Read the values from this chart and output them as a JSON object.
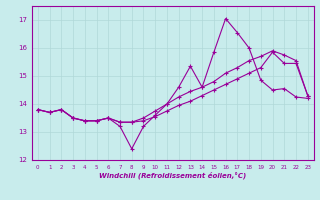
{
  "xlabel": "Windchill (Refroidissement éolien,°C)",
  "bg_color": "#c8ecec",
  "grid_color": "#b0d8d8",
  "line_color": "#990099",
  "ylim": [
    12,
    17.5
  ],
  "xlim": [
    -0.5,
    23.5
  ],
  "yticks": [
    12,
    13,
    14,
    15,
    16,
    17
  ],
  "xticks": [
    0,
    1,
    2,
    3,
    4,
    5,
    6,
    7,
    8,
    9,
    10,
    11,
    12,
    13,
    14,
    15,
    16,
    17,
    18,
    19,
    20,
    21,
    22,
    23
  ],
  "line1_x": [
    0,
    1,
    2,
    3,
    4,
    5,
    6,
    7,
    8,
    9,
    10,
    11,
    12,
    13,
    14,
    15,
    16,
    17,
    18,
    19,
    20,
    21,
    22,
    23
  ],
  "line1_y": [
    13.8,
    13.7,
    13.8,
    13.5,
    13.4,
    13.4,
    13.5,
    13.2,
    12.4,
    13.2,
    13.6,
    14.0,
    14.6,
    15.35,
    14.6,
    15.85,
    17.05,
    16.55,
    16.0,
    14.85,
    14.5,
    14.55,
    14.25,
    14.2
  ],
  "line2_x": [
    0,
    1,
    2,
    3,
    4,
    5,
    6,
    7,
    8,
    9,
    10,
    11,
    12,
    13,
    14,
    15,
    16,
    17,
    18,
    19,
    20,
    21,
    22,
    23
  ],
  "line2_y": [
    13.8,
    13.7,
    13.8,
    13.5,
    13.4,
    13.4,
    13.5,
    13.35,
    13.35,
    13.5,
    13.75,
    14.0,
    14.25,
    14.45,
    14.6,
    14.8,
    15.1,
    15.3,
    15.55,
    15.7,
    15.9,
    15.75,
    15.55,
    14.3
  ],
  "line3_x": [
    0,
    1,
    2,
    3,
    4,
    5,
    6,
    7,
    8,
    9,
    10,
    11,
    12,
    13,
    14,
    15,
    16,
    17,
    18,
    19,
    20,
    21,
    22,
    23
  ],
  "line3_y": [
    13.8,
    13.7,
    13.8,
    13.5,
    13.4,
    13.4,
    13.5,
    13.35,
    13.35,
    13.4,
    13.55,
    13.75,
    13.95,
    14.1,
    14.3,
    14.5,
    14.7,
    14.9,
    15.1,
    15.3,
    15.85,
    15.45,
    15.45,
    14.3
  ]
}
